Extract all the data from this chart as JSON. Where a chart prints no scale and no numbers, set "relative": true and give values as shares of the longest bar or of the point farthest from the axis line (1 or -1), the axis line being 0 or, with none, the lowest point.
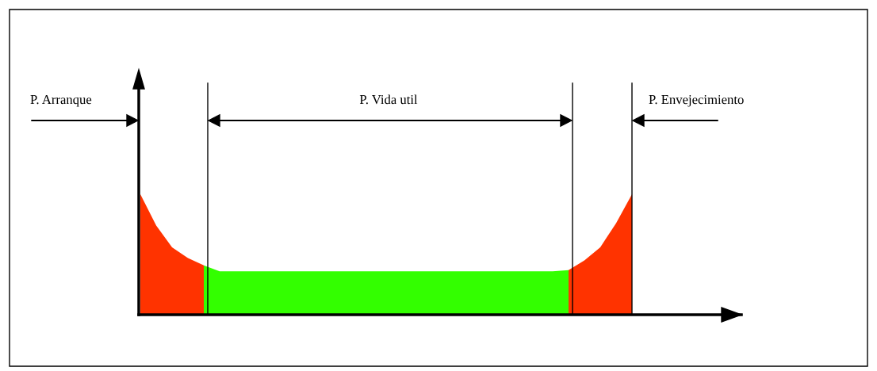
{
  "chart_data": {
    "type": "area",
    "relative": true,
    "categories": [
      null,
      null,
      null,
      null,
      null,
      null,
      null,
      null,
      null,
      null,
      null,
      null,
      null,
      null,
      null,
      null,
      null,
      null,
      null,
      null,
      null,
      null,
      null,
      null,
      null,
      null,
      null,
      null,
      null,
      null,
      null,
      null
    ],
    "series": [
      {
        "color": "#ff3300",
        "values": [
          1,
          0.74,
          0.56,
          0.47,
          0.41,
          null,
          null,
          null,
          null,
          null,
          null,
          null,
          null,
          null,
          null,
          null,
          null,
          null,
          null,
          null,
          null,
          null,
          null,
          null,
          null,
          null,
          null,
          null,
          null,
          null,
          null,
          null
        ]
      },
      {
        "color": "#33ff00",
        "values": [
          null,
          null,
          null,
          null,
          0.41,
          0.36,
          0.36,
          0.36,
          0.36,
          0.36,
          0.36,
          0.36,
          0.36,
          0.36,
          0.36,
          0.36,
          0.36,
          0.36,
          0.36,
          0.36,
          0.36,
          0.36,
          0.36,
          0.36,
          0.36,
          0.36,
          0.36,
          0.37,
          null,
          null,
          null,
          null
        ]
      },
      {
        "color": "#ff3300",
        "values": [
          null,
          null,
          null,
          null,
          null,
          null,
          null,
          null,
          null,
          null,
          null,
          null,
          null,
          null,
          null,
          null,
          null,
          null,
          null,
          null,
          null,
          null,
          null,
          null,
          null,
          null,
          null,
          0.37,
          0.45,
          0.56,
          0.76,
          1
        ]
      }
    ],
    "annotations": [
      "P. Arranque",
      "P. Vida util",
      "P. Envejecimiento"
    ],
    "legend": false
  }
}
